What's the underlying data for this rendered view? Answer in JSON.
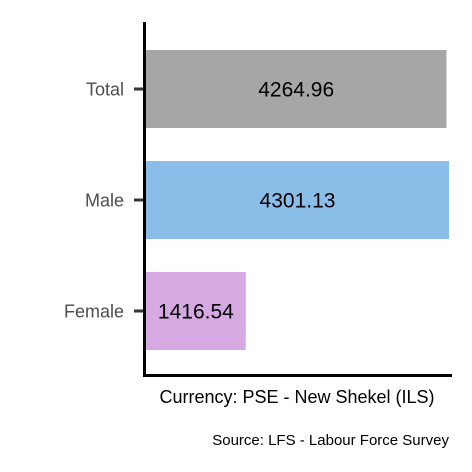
{
  "chart_data": {
    "type": "bar",
    "orientation": "horizontal",
    "categories": [
      "Total",
      "Male",
      "Female"
    ],
    "values": [
      4264.96,
      4301.13,
      1416.54
    ],
    "value_labels": [
      "4264.96",
      "4301.13",
      "1416.54"
    ],
    "bar_colors": [
      "#a6a6a6",
      "#8bbde9",
      "#d7a9e3"
    ],
    "xlabel": "Currency: PSE - New Shekel (ILS)",
    "ylabel": "",
    "xlim": [
      0,
      4301.13
    ],
    "grid": false,
    "legend": "none",
    "caption": "Source:  LFS - Labour Force Survey"
  }
}
